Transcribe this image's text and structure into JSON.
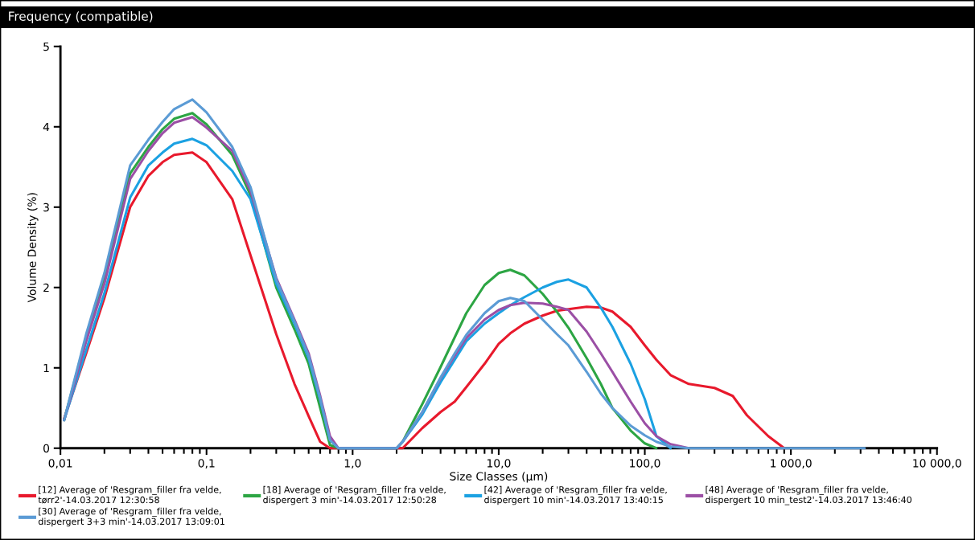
{
  "chart_data": {
    "type": "line",
    "title": "Frequency (compatible)",
    "xlabel": "Size Classes (µm)",
    "ylabel": "Volume Density (%)",
    "log": "x",
    "grid": false,
    "legend": "bottom",
    "marker": "none",
    "line_style": "solid",
    "xlim": [
      0.01,
      10000
    ],
    "ylim": [
      0,
      5
    ],
    "xticks": [
      {
        "value": 0.01,
        "label": "0,01"
      },
      {
        "value": 0.1,
        "label": "0,1"
      },
      {
        "value": 1,
        "label": "1,0"
      },
      {
        "value": 10,
        "label": "10,0"
      },
      {
        "value": 100,
        "label": "100,0"
      },
      {
        "value": 1000,
        "label": "1 000,0"
      },
      {
        "value": 10000,
        "label": "10 000,0"
      }
    ],
    "yticks": [
      0,
      1,
      2,
      3,
      4,
      5
    ],
    "x": [
      0.0106,
      0.015,
      0.02,
      0.03,
      0.04,
      0.05,
      0.06,
      0.08,
      0.1,
      0.15,
      0.2,
      0.3,
      0.4,
      0.5,
      0.6,
      0.7,
      0.8,
      1,
      2,
      2.2,
      3,
      4,
      5,
      6,
      8,
      10,
      12,
      15,
      20,
      25,
      30,
      40,
      50,
      60,
      80,
      100,
      120,
      150,
      200,
      300,
      400,
      500,
      700,
      900,
      1000,
      2000,
      3200
    ],
    "series": [
      {
        "name": "[12] Average of 'Resgram_filler fra velde,\ntørr2'-14.03.2017 12:30:58",
        "color": "#e8192c",
        "values": [
          0.37,
          1.18,
          1.87,
          3.0,
          3.39,
          3.56,
          3.65,
          3.68,
          3.56,
          3.1,
          2.4,
          1.42,
          0.8,
          0.4,
          0.08,
          0,
          0,
          0,
          0,
          0,
          0.25,
          0.45,
          0.58,
          0.76,
          1.05,
          1.3,
          1.43,
          1.55,
          1.65,
          1.71,
          1.73,
          1.76,
          1.75,
          1.7,
          1.51,
          1.28,
          1.1,
          0.91,
          0.8,
          0.75,
          0.65,
          0.41,
          0.15,
          0,
          null,
          null,
          null
        ]
      },
      {
        "name": "[18] Average of 'Resgram_filler fra velde,\ndispergert 3 min'-14.03.2017 12:50:28",
        "color": "#2ca543",
        "values": [
          0.35,
          1.38,
          2.12,
          3.42,
          3.75,
          3.97,
          4.1,
          4.17,
          4.03,
          3.65,
          3.15,
          2.0,
          1.48,
          1.05,
          0.5,
          0.04,
          0,
          0,
          0,
          0.08,
          0.55,
          1.01,
          1.38,
          1.68,
          2.03,
          2.18,
          2.22,
          2.15,
          1.92,
          1.7,
          1.5,
          1.12,
          0.8,
          0.5,
          0.22,
          0.06,
          0,
          null,
          null,
          null,
          null,
          null,
          null,
          null,
          null,
          null,
          null
        ]
      },
      {
        "name": "[42] Average of 'Resgram_filler fra velde,\ndispergert 10 min'-14.03.2017 13:40:15",
        "color": "#1ba1e2",
        "values": [
          0.35,
          1.22,
          1.93,
          3.12,
          3.52,
          3.68,
          3.79,
          3.85,
          3.77,
          3.45,
          3.1,
          2.05,
          1.55,
          1.12,
          0.6,
          0.1,
          0,
          0,
          0,
          0.08,
          0.42,
          0.82,
          1.1,
          1.33,
          1.55,
          1.68,
          1.78,
          1.88,
          2.0,
          2.07,
          2.1,
          2.0,
          1.75,
          1.51,
          1.05,
          0.61,
          0.15,
          0,
          null,
          null,
          null,
          null,
          null,
          null,
          null,
          null,
          null
        ]
      },
      {
        "name": "[48] Average of 'Resgram_filler fra velde,\ndispergert 10 min_test2'-14.03.2017 13:46:40",
        "color": "#9b4fa5",
        "values": [
          0.35,
          1.33,
          2.05,
          3.35,
          3.7,
          3.92,
          4.05,
          4.12,
          3.99,
          3.7,
          3.2,
          2.12,
          1.6,
          1.18,
          0.65,
          0.15,
          0,
          0,
          0,
          0.08,
          0.45,
          0.87,
          1.15,
          1.37,
          1.6,
          1.72,
          1.78,
          1.81,
          1.8,
          1.76,
          1.72,
          1.45,
          1.18,
          0.95,
          0.58,
          0.31,
          0.15,
          0.05,
          0,
          null,
          null,
          null,
          null,
          null,
          null,
          null,
          null
        ]
      },
      {
        "name": "[30] Average of 'Resgram_filler fra velde,\ndispergert 3+3 min'-14.03.2017 13:09:01",
        "color": "#5b9bd5",
        "values": [
          0.35,
          1.42,
          2.18,
          3.52,
          3.84,
          4.06,
          4.22,
          4.34,
          4.18,
          3.75,
          3.25,
          2.1,
          1.58,
          1.15,
          0.62,
          0.1,
          0,
          0,
          0,
          0.08,
          0.45,
          0.88,
          1.18,
          1.41,
          1.68,
          1.83,
          1.87,
          1.83,
          1.6,
          1.42,
          1.28,
          0.95,
          0.68,
          0.5,
          0.28,
          0.16,
          0.08,
          0.02,
          0,
          0,
          0,
          0,
          0,
          0,
          0,
          0,
          0
        ]
      }
    ]
  }
}
